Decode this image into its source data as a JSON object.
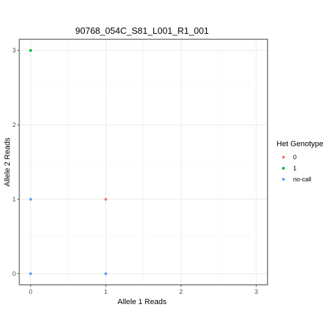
{
  "chart_data": {
    "type": "scatter",
    "title": "90768_054C_S81_L001_R1_001",
    "xlabel": "Allele 1 Reads",
    "ylabel": "Allele 2 Reads",
    "xlim": [
      -0.15,
      3.15
    ],
    "ylim": [
      -0.15,
      3.15
    ],
    "xticks": [
      "0",
      "1",
      "2",
      "3"
    ],
    "yticks": [
      "0",
      "1",
      "2",
      "3"
    ],
    "grid": true,
    "legend": {
      "title": "Het Genotype",
      "position": "right"
    },
    "series": [
      {
        "name": "0",
        "color": "#F8766D",
        "points": [
          {
            "x": 1,
            "y": 1
          }
        ]
      },
      {
        "name": "1",
        "color": "#00BA38",
        "points": [
          {
            "x": 0,
            "y": 3
          }
        ]
      },
      {
        "name": "no-call",
        "color": "#619CFF",
        "points": [
          {
            "x": 0,
            "y": 1
          },
          {
            "x": 0,
            "y": 0
          },
          {
            "x": 1,
            "y": 0
          }
        ]
      }
    ]
  }
}
